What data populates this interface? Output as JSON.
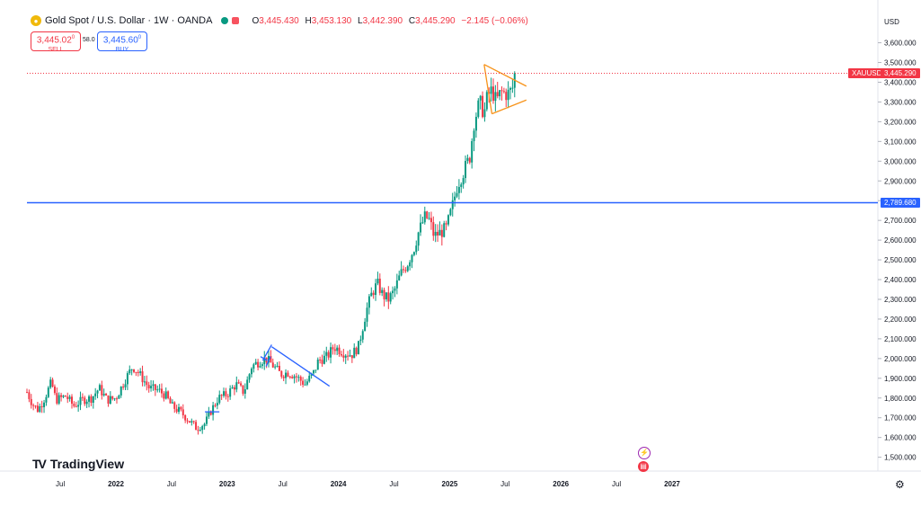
{
  "header": {
    "symbol_icon": "gold-coin-icon",
    "title": "Gold Spot / U.S. Dollar · 1W · OANDA",
    "ohlc": {
      "o_label": "O",
      "o": "3,445.430",
      "h_label": "H",
      "h": "3,453.130",
      "l_label": "L",
      "l": "3,442.390",
      "c_label": "C",
      "c": "3,445.290",
      "change": "−2.145 (−0.06%)"
    }
  },
  "trade": {
    "sell_price": "3,445.02",
    "sell_sup": "0",
    "sell_label": "SELL",
    "spread": "58.0",
    "buy_price": "3,445.60",
    "buy_sup": "0",
    "buy_label": "BUY"
  },
  "currency": "USD",
  "brand": "TradingView",
  "colors": {
    "up": "#089981",
    "down": "#f23645",
    "hline": "#2962ff",
    "triangle": "#f7931a",
    "trend": "#2962ff"
  },
  "price_tag": {
    "symbol": "XAUUSD",
    "value": "3,445.290"
  },
  "hline_tag": {
    "value": "2,789.680"
  },
  "chart_data": {
    "type": "candlestick",
    "ylim": [
      1430,
      3680
    ],
    "yticks": [
      1500,
      1600,
      1700,
      1800,
      1900,
      2000,
      2100,
      2200,
      2300,
      2400,
      2500,
      2600,
      2700,
      2800,
      2900,
      3000,
      3100,
      3200,
      3300,
      3400,
      3500,
      3600
    ],
    "ytick_labels": [
      "1,500.000",
      "1,600.000",
      "1,700.000",
      "1,800.000",
      "1,900.000",
      "2,000.000",
      "2,100.000",
      "2,200.000",
      "2,300.000",
      "2,400.000",
      "2,500.000",
      "2,600.000",
      "2,700.000",
      "2,800.000",
      "2,900.000",
      "3,000.000",
      "3,100.000",
      "3,200.000",
      "3,300.000",
      "3,400.000",
      "3,500.000",
      "3,600.000"
    ],
    "x_labels": [
      {
        "label": "Jul",
        "t": 2021.5
      },
      {
        "label": "2022",
        "t": 2022.0
      },
      {
        "label": "Jul",
        "t": 2022.5
      },
      {
        "label": "2023",
        "t": 2023.0
      },
      {
        "label": "Jul",
        "t": 2023.5
      },
      {
        "label": "2024",
        "t": 2024.0
      },
      {
        "label": "Jul",
        "t": 2024.5
      },
      {
        "label": "2025",
        "t": 2025.0
      },
      {
        "label": "Jul",
        "t": 2025.5
      },
      {
        "label": "2026",
        "t": 2026.0
      },
      {
        "label": "Jul",
        "t": 2026.5
      },
      {
        "label": "2027",
        "t": 2027.0
      }
    ],
    "x_range": [
      2021.2,
      2028.85
    ],
    "anchors": [
      [
        2021.2,
        1830
      ],
      [
        2021.25,
        1770
      ],
      [
        2021.3,
        1740
      ],
      [
        2021.35,
        1790
      ],
      [
        2021.42,
        1880
      ],
      [
        2021.46,
        1790
      ],
      [
        2021.55,
        1810
      ],
      [
        2021.62,
        1760
      ],
      [
        2021.7,
        1790
      ],
      [
        2021.78,
        1800
      ],
      [
        2021.85,
        1850
      ],
      [
        2021.92,
        1790
      ],
      [
        2022.0,
        1800
      ],
      [
        2022.08,
        1890
      ],
      [
        2022.15,
        1960
      ],
      [
        2022.2,
        1930
      ],
      [
        2022.3,
        1850
      ],
      [
        2022.38,
        1840
      ],
      [
        2022.45,
        1810
      ],
      [
        2022.5,
        1760
      ],
      [
        2022.58,
        1730
      ],
      [
        2022.65,
        1690
      ],
      [
        2022.72,
        1650
      ],
      [
        2022.8,
        1670
      ],
      [
        2022.85,
        1730
      ],
      [
        2022.92,
        1800
      ],
      [
        2023.0,
        1820
      ],
      [
        2023.08,
        1870
      ],
      [
        2023.15,
        1830
      ],
      [
        2023.22,
        1960
      ],
      [
        2023.3,
        1990
      ],
      [
        2023.35,
        2000
      ],
      [
        2023.42,
        1960
      ],
      [
        2023.48,
        1920
      ],
      [
        2023.55,
        1930
      ],
      [
        2023.62,
        1910
      ],
      [
        2023.7,
        1870
      ],
      [
        2023.78,
        1930
      ],
      [
        2023.82,
        1990
      ],
      [
        2023.9,
        2010
      ],
      [
        2023.96,
        2060
      ],
      [
        2024.05,
        2030
      ],
      [
        2024.12,
        2020
      ],
      [
        2024.18,
        2060
      ],
      [
        2024.25,
        2240
      ],
      [
        2024.3,
        2330
      ],
      [
        2024.35,
        2380
      ],
      [
        2024.4,
        2320
      ],
      [
        2024.45,
        2300
      ],
      [
        2024.5,
        2340
      ],
      [
        2024.56,
        2430
      ],
      [
        2024.62,
        2480
      ],
      [
        2024.68,
        2560
      ],
      [
        2024.72,
        2640
      ],
      [
        2024.78,
        2720
      ],
      [
        2024.82,
        2700
      ],
      [
        2024.86,
        2620
      ],
      [
        2024.92,
        2640
      ],
      [
        2024.97,
        2660
      ],
      [
        2025.02,
        2760
      ],
      [
        2025.07,
        2880
      ],
      [
        2025.12,
        2940
      ],
      [
        2025.18,
        3020
      ],
      [
        2025.22,
        3200
      ],
      [
        2025.27,
        3300
      ],
      [
        2025.31,
        3240
      ],
      [
        2025.34,
        3330
      ],
      [
        2025.38,
        3360
      ],
      [
        2025.42,
        3300
      ],
      [
        2025.46,
        3350
      ],
      [
        2025.52,
        3340
      ],
      [
        2025.56,
        3360
      ],
      [
        2025.6,
        3445
      ]
    ],
    "trendlines": [
      {
        "kind": "hline",
        "y": 2789.68
      },
      {
        "kind": "line",
        "x1": 2022.8,
        "y1": 1730,
        "x2": 2022.93,
        "y2": 1730,
        "color": "#2962ff"
      },
      {
        "kind": "line",
        "x1": 2023.32,
        "y1": 1990,
        "x2": 2023.4,
        "y2": 2070,
        "color": "#2962ff"
      },
      {
        "kind": "line",
        "x1": 2023.35,
        "y1": 1960,
        "x2": 2023.39,
        "y2": 2010,
        "color": "#2962ff"
      },
      {
        "kind": "line",
        "x1": 2023.3,
        "y1": 2010,
        "x2": 2023.36,
        "y2": 1990,
        "color": "#2962ff"
      },
      {
        "kind": "line",
        "x1": 2023.4,
        "y1": 2060,
        "x2": 2023.92,
        "y2": 1860,
        "color": "#2962ff"
      },
      {
        "kind": "line",
        "x1": 2025.31,
        "y1": 3490,
        "x2": 2025.69,
        "y2": 3380,
        "color": "#f7931a"
      },
      {
        "kind": "line",
        "x1": 2025.31,
        "y1": 3490,
        "x2": 2025.38,
        "y2": 3240,
        "color": "#f7931a"
      },
      {
        "kind": "line",
        "x1": 2025.38,
        "y1": 3240,
        "x2": 2025.69,
        "y2": 3310,
        "color": "#f7931a"
      }
    ]
  }
}
